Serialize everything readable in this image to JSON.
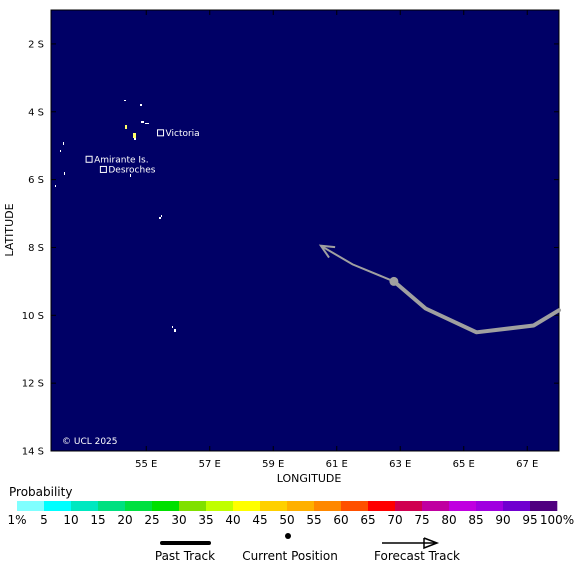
{
  "map": {
    "ocean_color": "#000066",
    "land_color": "#ffffff",
    "lat_labels": [
      "2 S",
      "4 S",
      "6 S",
      "8 S",
      "10 S",
      "12 S",
      "14 S"
    ],
    "lon_labels": [
      "55 E",
      "57 E",
      "59 E",
      "61 E",
      "63 E",
      "65 E",
      "67 E"
    ],
    "xlabel": "LONGITUDE",
    "ylabel": "LATITUDE",
    "copyright": "© UCL 2025",
    "places": [
      {
        "name": "Victoria",
        "lon": 55.45,
        "lat": 4.62
      },
      {
        "name": "Amirante Is.",
        "lon": 53.2,
        "lat": 5.4
      },
      {
        "name": "Desroches",
        "lon": 53.65,
        "lat": 5.7
      }
    ]
  },
  "tracks": {
    "past": [
      {
        "lon": 62.8,
        "lat": 9.0
      },
      {
        "lon": 63.8,
        "lat": 9.8
      },
      {
        "lon": 65.4,
        "lat": 10.5
      },
      {
        "lon": 67.2,
        "lat": 10.3
      },
      {
        "lon": 68.0,
        "lat": 9.85
      }
    ],
    "current": {
      "lon": 62.8,
      "lat": 9.0
    },
    "forecast": [
      {
        "lon": 62.8,
        "lat": 9.0
      },
      {
        "lon": 61.5,
        "lat": 8.5
      },
      {
        "lon": 60.5,
        "lat": 7.95
      }
    ],
    "past_color": "#a0a0a0",
    "forecast_color": "#a0a0a0"
  },
  "legend": {
    "title": "Probability",
    "labels": [
      "1%",
      "5",
      "10",
      "15",
      "20",
      "25",
      "30",
      "35",
      "40",
      "45",
      "50",
      "55",
      "60",
      "65",
      "70",
      "75",
      "80",
      "85",
      "90",
      "95",
      "100%"
    ],
    "colors": [
      "#80ffff",
      "#00ffff",
      "#00e8c0",
      "#00e080",
      "#00e040",
      "#00e000",
      "#80e000",
      "#c0ff00",
      "#ffff00",
      "#ffd000",
      "#ffb000",
      "#ff8800",
      "#ff5000",
      "#ff0000",
      "#d00050",
      "#c000a0",
      "#c000e0",
      "#a000e0",
      "#7000d0",
      "#500080"
    ],
    "past_track_label": "Past Track",
    "current_position_label": "Current Position",
    "forecast_track_label": "Forecast Track"
  }
}
